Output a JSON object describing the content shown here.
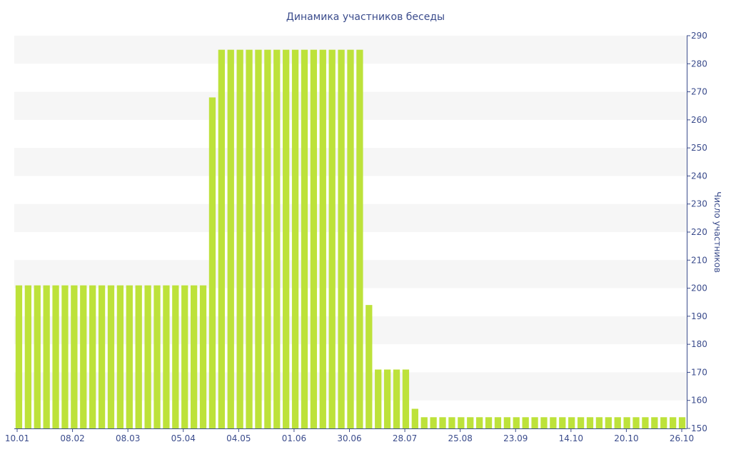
{
  "chart_data": {
    "type": "bar",
    "title": "Динамика участников беседы",
    "xlabel": "",
    "ylabel": "Число участников",
    "ylim": [
      150,
      290
    ],
    "yticks": [
      150,
      160,
      170,
      180,
      190,
      200,
      210,
      220,
      230,
      240,
      250,
      260,
      270,
      280,
      290
    ],
    "xticks": [
      "10.01",
      "08.02",
      "08.03",
      "05.04",
      "04.05",
      "01.06",
      "30.06",
      "28.07",
      "25.08",
      "23.09",
      "14.10",
      "20.10",
      "26.10"
    ],
    "grid": "horizontal bands",
    "y_axis_position": "right",
    "values": [
      201,
      201,
      201,
      201,
      201,
      201,
      201,
      201,
      201,
      201,
      201,
      201,
      201,
      201,
      201,
      201,
      201,
      201,
      201,
      201,
      201,
      268,
      285,
      285,
      285,
      285,
      285,
      285,
      285,
      285,
      285,
      285,
      285,
      285,
      285,
      285,
      285,
      285,
      194,
      171,
      171,
      171,
      171,
      157,
      154,
      154,
      154,
      154,
      154,
      154,
      154,
      154,
      154,
      154,
      154,
      154,
      154,
      154,
      154,
      154,
      154,
      154,
      154,
      154,
      154,
      154,
      154,
      154,
      154,
      154,
      154,
      154,
      154
    ],
    "colors": {
      "bar": "#bde23a",
      "band": "#f6f6f6",
      "axis": "#3b4c8c",
      "text": "#3b4c8c"
    }
  }
}
